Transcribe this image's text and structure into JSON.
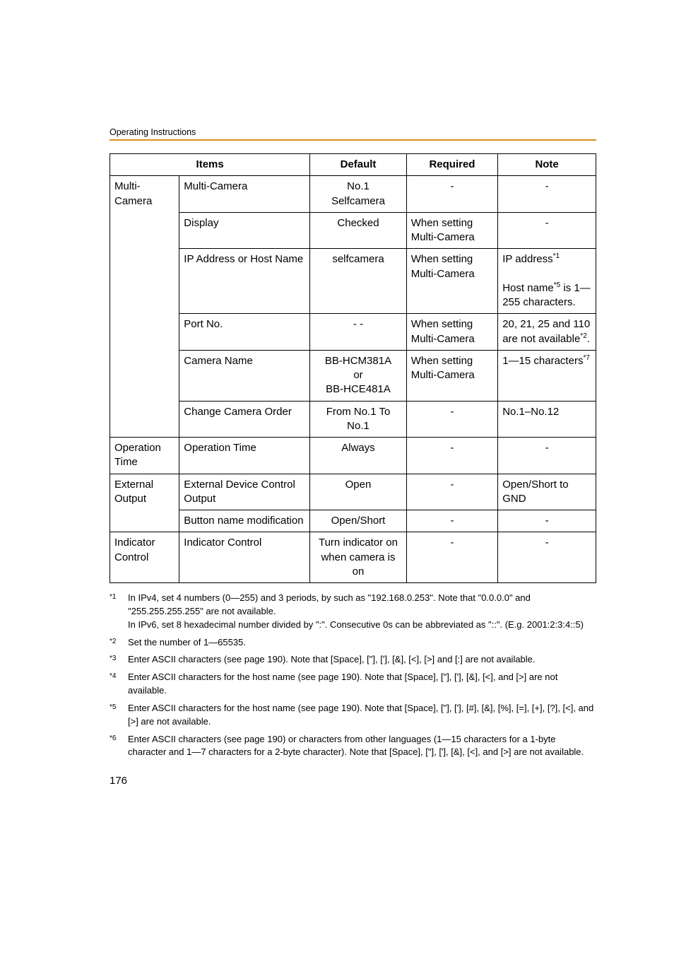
{
  "header": {
    "label": "Operating Instructions"
  },
  "table": {
    "headers": {
      "items": "Items",
      "default": "Default",
      "required": "Required",
      "note": "Note"
    },
    "groups": [
      {
        "key": "multi_camera",
        "label": "Multi-\nCamera",
        "rows": [
          {
            "item": "Multi-Camera",
            "default": "No.1\nSelfcamera",
            "default_align": "center",
            "required": "-",
            "note": "-",
            "note_align": "center"
          },
          {
            "item": "Display",
            "default": "Checked",
            "default_align": "center",
            "required": "When setting Multi-Camera",
            "note": "-",
            "note_align": "center"
          },
          {
            "item": "IP Address or Host Name",
            "default": "selfcamera",
            "default_align": "center",
            "required": "When setting Multi-Camera",
            "note_html": "IP address<sup>*1</sup><br><br>Host name<sup>*5</sup> is 1—255 characters.",
            "note_align": "left"
          },
          {
            "item": "Port No.",
            "default": "- -",
            "default_align": "center",
            "required": "When setting Multi-Camera",
            "note_html": "20, 21, 25 and 110 are not available<sup>*2</sup>.",
            "note_align": "left"
          },
          {
            "item": "Camera Name",
            "default": "BB-HCM381A\nor\nBB-HCE481A",
            "default_align": "center",
            "required": "When setting Multi-Camera",
            "note_html": "1—15 characters<sup>*7</sup>",
            "note_align": "left"
          },
          {
            "item": "Change Camera Order",
            "default": "From No.1 To No.1",
            "default_align": "center",
            "required": "-",
            "note": "No.1–No.12",
            "note_align": "left"
          }
        ]
      },
      {
        "key": "operation_time",
        "label": "Operation Time",
        "rows": [
          {
            "item": "Operation Time",
            "default": "Always",
            "default_align": "center",
            "required": "-",
            "note": "-",
            "note_align": "center"
          }
        ]
      },
      {
        "key": "external_output",
        "label": "External Output",
        "rows": [
          {
            "item": "External Device Control Output",
            "default": "Open",
            "default_align": "center",
            "required": "-",
            "note": "Open/Short to GND",
            "note_align": "left"
          },
          {
            "item": "Button name modification",
            "default": "Open/Short",
            "default_align": "center",
            "required": "-",
            "note": "-",
            "note_align": "center"
          }
        ]
      },
      {
        "key": "indicator_control",
        "label": "Indicator Control",
        "rows": [
          {
            "item": "Indicator Control",
            "default": "Turn indicator on when camera is on",
            "default_align": "center",
            "required": "-",
            "note": "-",
            "note_align": "center"
          }
        ]
      }
    ]
  },
  "footnotes": [
    {
      "mark": "*1",
      "text": "In IPv4, set 4 numbers (0—255) and 3 periods, by such as \"192.168.0.253\". Note that \"0.0.0.0\" and \"255.255.255.255\" are not available.\nIn IPv6, set 8 hexadecimal number divided by \":\". Consecutive 0s can be abbreviated as \"::\". (E.g. 2001:2:3:4::5)"
    },
    {
      "mark": "*2",
      "text": "Set the number of 1—65535."
    },
    {
      "mark": "*3",
      "text": "Enter ASCII characters (see page 190). Note that [Space], [\"], ['], [&], [<], [>] and [:] are not available."
    },
    {
      "mark": "*4",
      "text": "Enter ASCII characters for the host name (see page 190). Note that [Space], [\"], ['], [&], [<], and [>] are not available."
    },
    {
      "mark": "*5",
      "text": "Enter ASCII characters for the host name (see page 190). Note that [Space], [\"], ['], [#], [&], [%], [=], [+], [?], [<], and [>] are not available."
    },
    {
      "mark": "*6",
      "text": "Enter ASCII characters (see page 190) or characters from other languages (1—15 characters for a 1-byte character and 1—7 characters for a 2-byte character). Note that [Space], [\"], ['], [&], [<], and [>] are not available."
    }
  ],
  "page_number": "176"
}
